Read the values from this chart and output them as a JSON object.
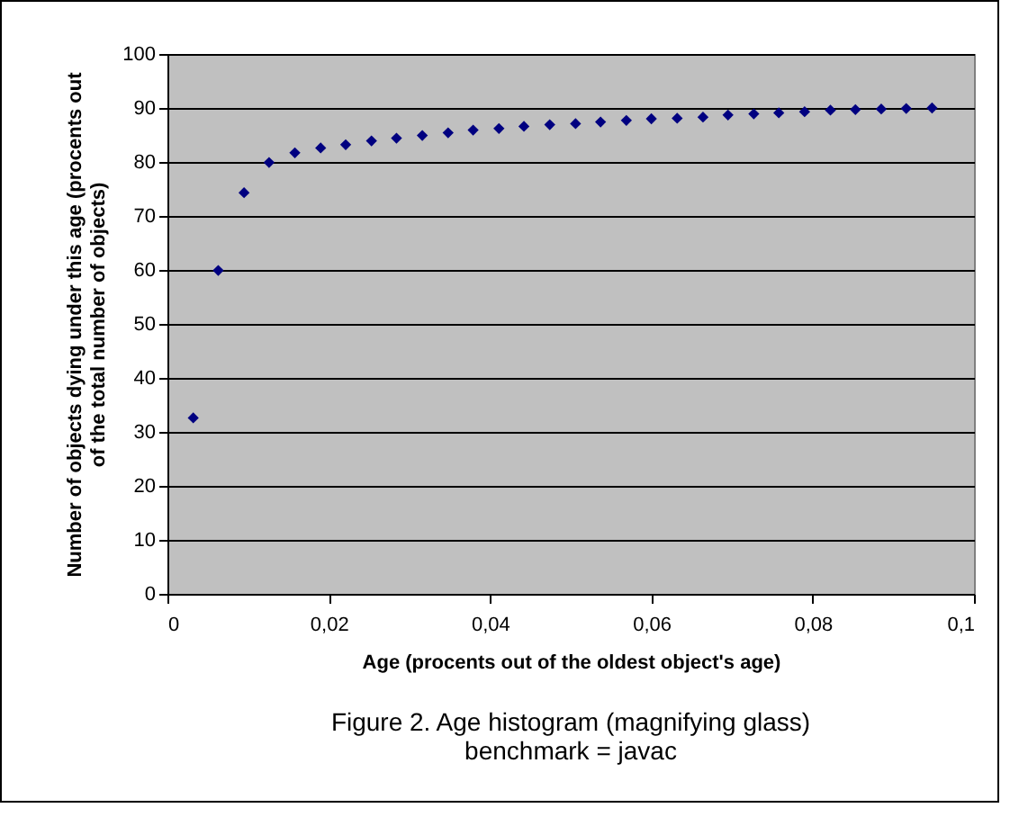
{
  "chart_data": {
    "type": "scatter",
    "title": "Figure 2. Age histogram (magnifying glass)",
    "subtitle": "benchmark = javac",
    "xlabel": "Age (procents out of the oldest object's age)",
    "ylabel": "Number of objects dying under this age (procents out of the total number of objects)",
    "x": [
      0.0032,
      0.0063,
      0.0095,
      0.0126,
      0.0158,
      0.019,
      0.0221,
      0.0253,
      0.0284,
      0.0316,
      0.0348,
      0.0379,
      0.0411,
      0.0442,
      0.0474,
      0.0506,
      0.0537,
      0.0569,
      0.06,
      0.0632,
      0.0664,
      0.0695,
      0.0727,
      0.0758,
      0.079,
      0.0822,
      0.0853,
      0.0885,
      0.0916,
      0.0948
    ],
    "series": [
      {
        "color": "#000080",
        "values": [
          32.6,
          59.9,
          74.3,
          79.9,
          81.7,
          82.6,
          83.2,
          83.9,
          84.4,
          84.9,
          85.4,
          85.9,
          86.2,
          86.6,
          86.9,
          87.1,
          87.4,
          87.7,
          88.0,
          88.1,
          88.3,
          88.7,
          88.9,
          89.1,
          89.3,
          89.6,
          89.7,
          89.8,
          89.9,
          90.0
        ]
      }
    ],
    "xlim": [
      0,
      0.1
    ],
    "xticks": [
      0,
      {
        "value": 0.02,
        "label": "0,02"
      },
      {
        "value": 0.04,
        "label": "0,04"
      },
      {
        "value": 0.06,
        "label": "0,06"
      },
      {
        "value": 0.08,
        "label": "0,08"
      },
      {
        "value": 0.1,
        "label": "0,1"
      }
    ],
    "ylim": [
      0,
      100
    ],
    "yticks": [
      0,
      10,
      20,
      30,
      40,
      50,
      60,
      70,
      80,
      90,
      100
    ],
    "grid": "y",
    "marker": "diamond"
  }
}
